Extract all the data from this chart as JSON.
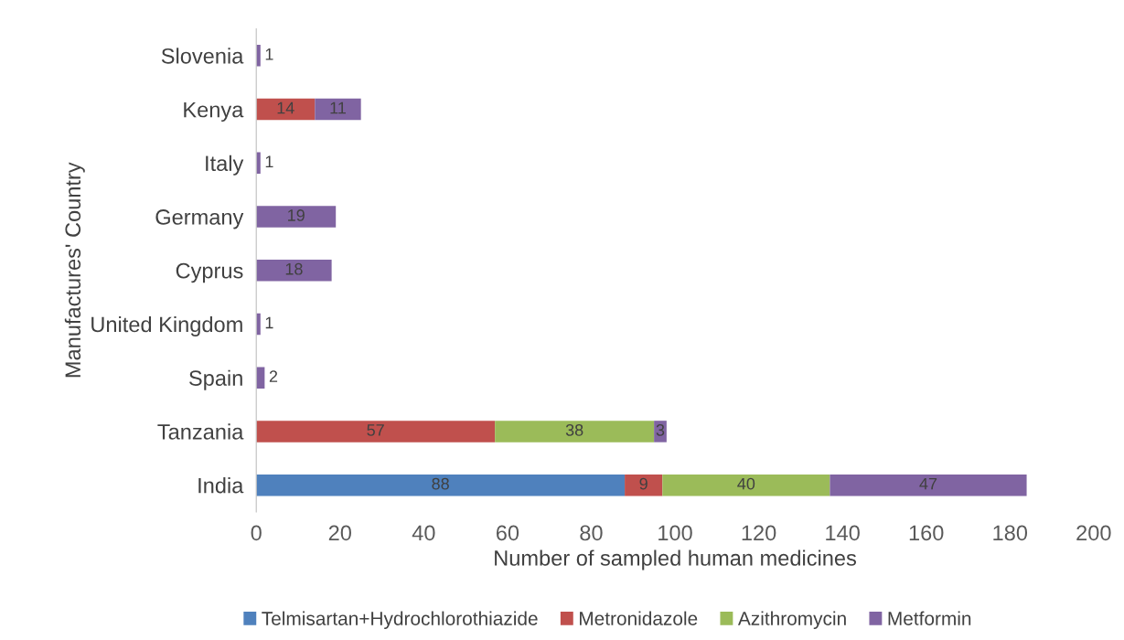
{
  "chart_data": {
    "type": "bar",
    "orientation": "horizontal",
    "stacked": true,
    "data_labels": true,
    "grid": false,
    "legend": "bottom",
    "xlabel": "Number of sampled human medicines",
    "ylabel": "Manufactures' Country",
    "categories": [
      "Slovenia",
      "Kenya",
      "Italy",
      "Germany",
      "Cyprus",
      "United Kingdom",
      "Spain",
      "Tanzania",
      "India"
    ],
    "xlim": [
      0,
      200
    ],
    "xticks": [
      0,
      20,
      40,
      60,
      80,
      100,
      120,
      140,
      160,
      180,
      200
    ],
    "series": [
      {
        "name": "Telmisartan+Hydrochlorothiazide",
        "color": "#4f81bd",
        "values": [
          null,
          null,
          null,
          null,
          null,
          null,
          null,
          null,
          88
        ]
      },
      {
        "name": "Metronidazole",
        "color": "#c0504d",
        "values": [
          null,
          14,
          null,
          null,
          null,
          null,
          null,
          57,
          9
        ]
      },
      {
        "name": "Azithromycin",
        "color": "#9bbb59",
        "values": [
          null,
          null,
          null,
          null,
          null,
          null,
          null,
          38,
          40
        ]
      },
      {
        "name": "Metformin",
        "color": "#8064a2",
        "values": [
          1,
          11,
          1,
          19,
          18,
          1,
          2,
          3,
          47
        ]
      }
    ]
  }
}
